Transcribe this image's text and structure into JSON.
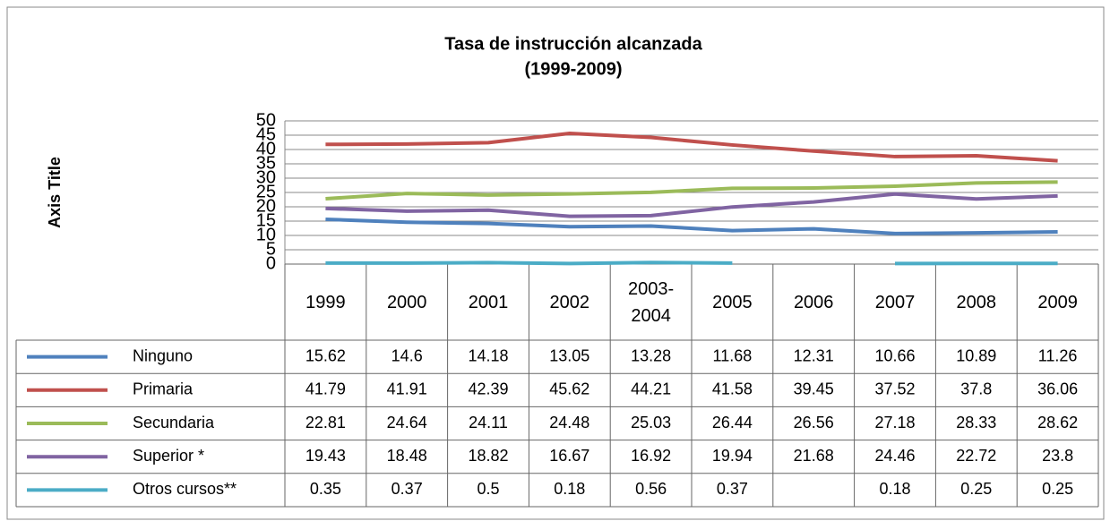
{
  "chart_data": {
    "type": "line",
    "title": "Tasa de instrucción alcanzada",
    "subtitle": "(1999-2009)",
    "y_label": "Axis Title",
    "categories": [
      "1999",
      "2000",
      "2001",
      "2002",
      "2003-2004",
      "2005",
      "2006",
      "2007",
      "2008",
      "2009"
    ],
    "series": [
      {
        "name": "Ninguno",
        "color": "#4f81bd",
        "values": [
          15.62,
          14.6,
          14.18,
          13.05,
          13.28,
          11.68,
          12.31,
          10.66,
          10.89,
          11.26
        ]
      },
      {
        "name": "Primaria",
        "color": "#c0504d",
        "values": [
          41.79,
          41.91,
          42.39,
          45.62,
          44.21,
          41.58,
          39.45,
          37.52,
          37.8,
          36.06
        ]
      },
      {
        "name": "Secundaria",
        "color": "#9bbb59",
        "values": [
          22.81,
          24.64,
          24.11,
          24.48,
          25.03,
          26.44,
          26.56,
          27.18,
          28.33,
          28.62
        ]
      },
      {
        "name": "Superior *",
        "color": "#8064a2",
        "values": [
          19.43,
          18.48,
          18.82,
          16.67,
          16.92,
          19.94,
          21.68,
          24.46,
          22.72,
          23.8
        ]
      },
      {
        "name": "Otros cursos**",
        "color": "#4bacc6",
        "values": [
          0.35,
          0.37,
          0.5,
          0.18,
          0.56,
          0.37,
          null,
          0.18,
          0.25,
          0.25
        ]
      }
    ],
    "ylim": [
      0,
      50
    ],
    "yticks": [
      0,
      5,
      10,
      15,
      20,
      25,
      30,
      35,
      40,
      45,
      50
    ],
    "grid": true
  }
}
